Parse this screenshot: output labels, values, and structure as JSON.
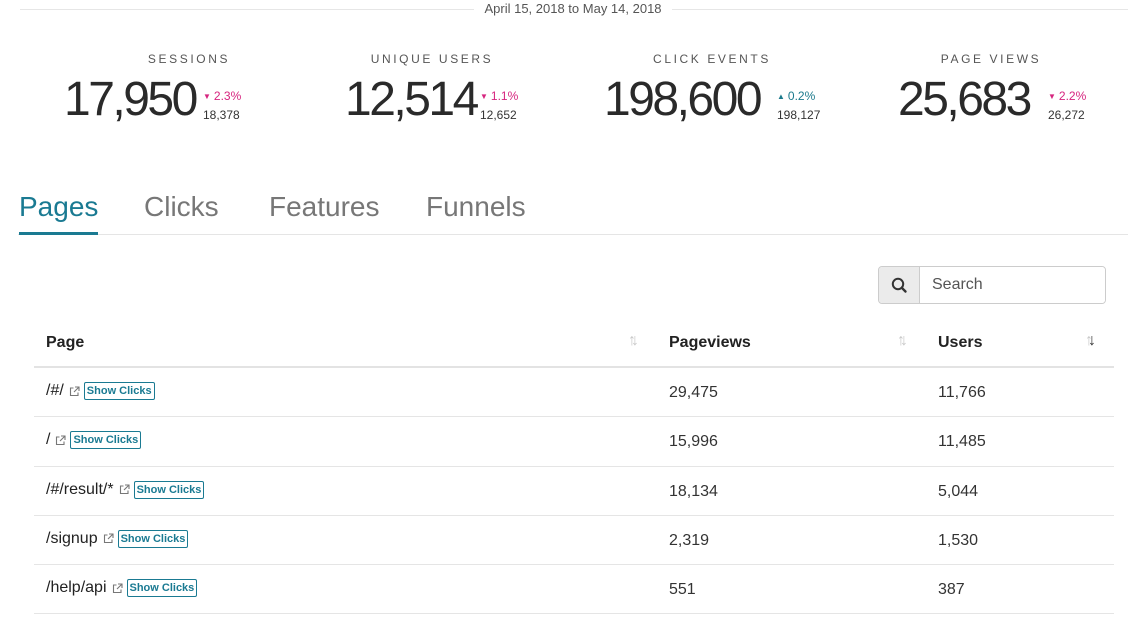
{
  "date_range": "April 15, 2018 to May 14, 2018",
  "stats": [
    {
      "label": "SESSIONS",
      "value": "17,950",
      "change": "2.3%",
      "direction": "down",
      "previous": "18,378"
    },
    {
      "label": "UNIQUE USERS",
      "value": "12,514",
      "change": "1.1%",
      "direction": "down",
      "previous": "12,652"
    },
    {
      "label": "CLICK EVENTS",
      "value": "198,600",
      "change": "0.2%",
      "direction": "up",
      "previous": "198,127"
    },
    {
      "label": "PAGE VIEWS",
      "value": "25,683",
      "change": "2.2%",
      "direction": "down",
      "previous": "26,272"
    }
  ],
  "tabs": [
    {
      "label": "Pages",
      "active": true
    },
    {
      "label": "Clicks",
      "active": false
    },
    {
      "label": "Features",
      "active": false
    },
    {
      "label": "Funnels",
      "active": false
    }
  ],
  "search": {
    "placeholder": "Search",
    "icon": "search-icon"
  },
  "table": {
    "headers": {
      "page": "Page",
      "pageviews": "Pageviews",
      "users": "Users"
    },
    "sorted_column": "users",
    "sort_direction": "descending",
    "show_clicks_label": "Show Clicks",
    "rows": [
      {
        "page": "/#/",
        "pageviews": "29,475",
        "users": "11,766"
      },
      {
        "page": "/",
        "pageviews": "15,996",
        "users": "11,485"
      },
      {
        "page": "/#/result/*",
        "pageviews": "18,134",
        "users": "5,044"
      },
      {
        "page": "/signup",
        "pageviews": "2,319",
        "users": "1,530"
      },
      {
        "page": "/help/api",
        "pageviews": "551",
        "users": "387"
      }
    ]
  },
  "colors": {
    "accent": "#1a7a92",
    "negative": "#d6257f",
    "positive": "#1c7a8c"
  }
}
